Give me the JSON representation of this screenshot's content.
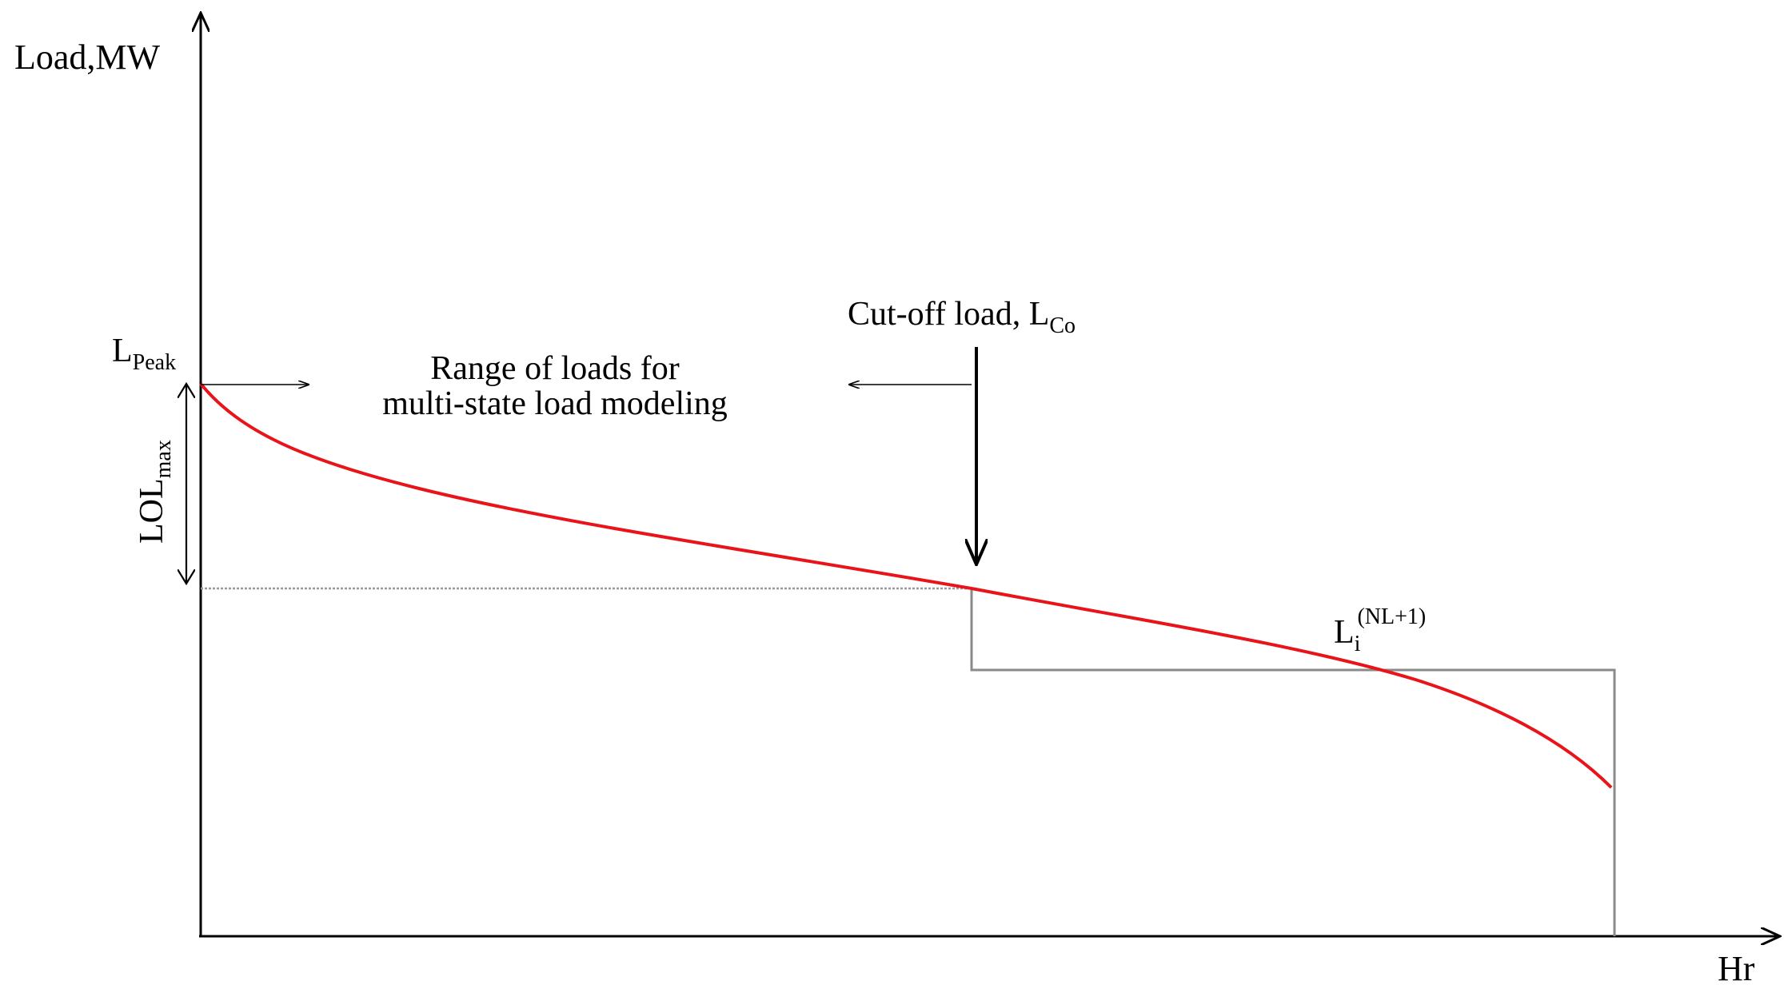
{
  "axes": {
    "y_label": "Load,MW",
    "x_label": "Hr"
  },
  "labels": {
    "peak": {
      "main": "L",
      "sub": "Peak"
    },
    "lol": {
      "main": "LOL",
      "sub": "max"
    },
    "range_line1": "Range of loads for",
    "range_line2": "multi-state load modeling",
    "cutoff": {
      "main": "Cut-off load, L",
      "sub": "Co"
    },
    "state": {
      "main": "L",
      "sub": "i",
      "sup": "(NL+1)"
    }
  },
  "colors": {
    "axis": "#000000",
    "curve": "#e8141a",
    "step": "#8a8a8a",
    "dotted": "#9a9a9a"
  }
}
